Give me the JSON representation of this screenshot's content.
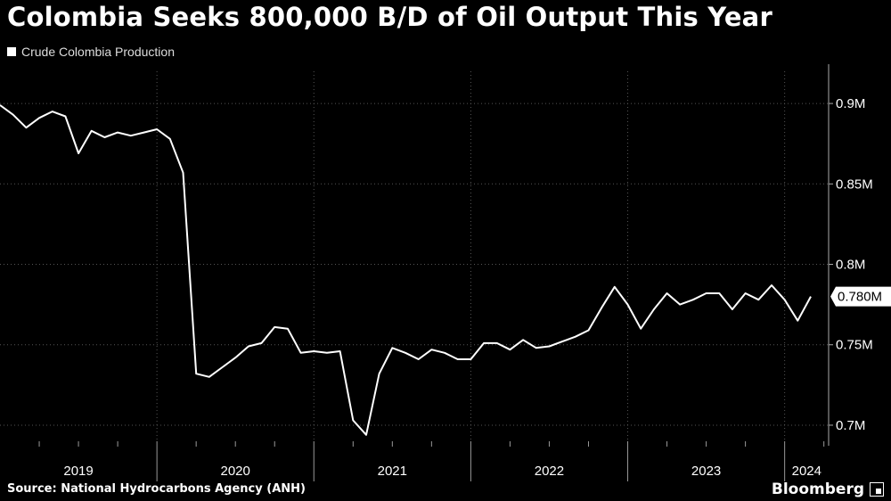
{
  "title": "Colombia Seeks 800,000 B/D of Oil Output This Year",
  "legend": {
    "label": "Crude Colombia Production",
    "swatch_color": "#ffffff"
  },
  "source": "Source: National Hydrocarbons Agency (ANH)",
  "brand": "Bloomberg",
  "chart_data": {
    "type": "line",
    "title": "Colombia Seeks 800,000 B/D of Oil Output This Year",
    "xlabel": "",
    "ylabel": "",
    "legend_position": "top-left",
    "grid": true,
    "x_tick_labels": [
      "2019",
      "2020",
      "2021",
      "2022",
      "2023",
      "2024"
    ],
    "y_ticks": [
      {
        "value": 0.7,
        "label": "0.7M"
      },
      {
        "value": 0.75,
        "label": "0.75M"
      },
      {
        "value": 0.8,
        "label": "0.8M"
      },
      {
        "value": 0.85,
        "label": "0.85M"
      },
      {
        "value": 0.9,
        "label": "0.9M"
      }
    ],
    "ylim": [
      0.69,
      0.92
    ],
    "xlim": [
      "2019-01",
      "2024-03"
    ],
    "last_value_label": "0.780M",
    "line_color": "#ffffff",
    "series": [
      {
        "name": "Crude Colombia Production",
        "x": [
          "2019-01",
          "2019-02",
          "2019-03",
          "2019-04",
          "2019-05",
          "2019-06",
          "2019-07",
          "2019-08",
          "2019-09",
          "2019-10",
          "2019-11",
          "2019-12",
          "2020-01",
          "2020-02",
          "2020-03",
          "2020-04",
          "2020-05",
          "2020-06",
          "2020-07",
          "2020-08",
          "2020-09",
          "2020-10",
          "2020-11",
          "2020-12",
          "2021-01",
          "2021-02",
          "2021-03",
          "2021-04",
          "2021-05",
          "2021-06",
          "2021-07",
          "2021-08",
          "2021-09",
          "2021-10",
          "2021-11",
          "2021-12",
          "2022-01",
          "2022-02",
          "2022-03",
          "2022-04",
          "2022-05",
          "2022-06",
          "2022-07",
          "2022-08",
          "2022-09",
          "2022-10",
          "2022-11",
          "2022-12",
          "2023-01",
          "2023-02",
          "2023-03",
          "2023-04",
          "2023-05",
          "2023-06",
          "2023-07",
          "2023-08",
          "2023-09",
          "2023-10",
          "2023-11",
          "2023-12",
          "2024-01",
          "2024-02",
          "2024-03"
        ],
        "values": [
          0.899,
          0.893,
          0.885,
          0.891,
          0.895,
          0.892,
          0.869,
          0.883,
          0.879,
          0.882,
          0.88,
          0.882,
          0.884,
          0.878,
          0.857,
          0.732,
          0.73,
          0.736,
          0.742,
          0.749,
          0.751,
          0.761,
          0.76,
          0.745,
          0.746,
          0.745,
          0.746,
          0.703,
          0.694,
          0.732,
          0.748,
          0.745,
          0.741,
          0.747,
          0.745,
          0.741,
          0.741,
          0.751,
          0.751,
          0.747,
          0.753,
          0.748,
          0.749,
          0.752,
          0.755,
          0.759,
          0.773,
          0.786,
          0.775,
          0.76,
          0.772,
          0.782,
          0.775,
          0.778,
          0.782,
          0.782,
          0.772,
          0.782,
          0.778,
          0.787,
          0.778,
          0.765,
          0.78
        ]
      }
    ]
  }
}
